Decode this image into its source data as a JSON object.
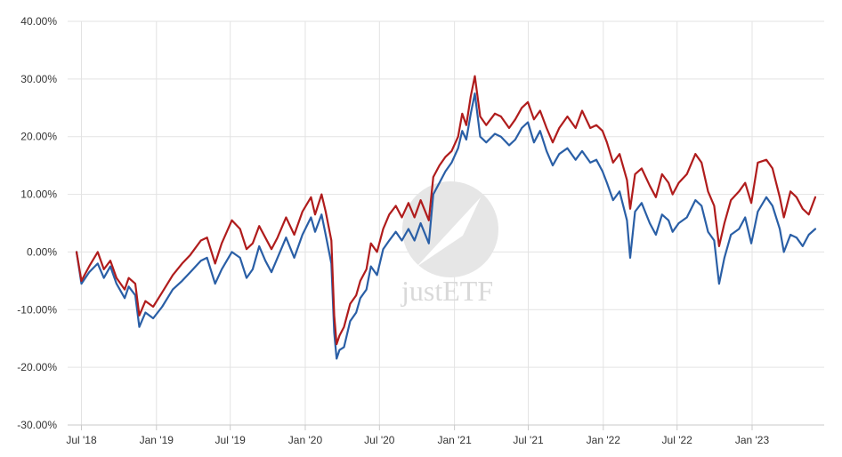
{
  "watermark": {
    "text": "justETF"
  },
  "colors": {
    "series_blue": "#2a5fa6",
    "series_red": "#b01c1c",
    "grid": "#e3e3e3",
    "axis": "#c9c9c9"
  },
  "chart_data": {
    "type": "line",
    "title": "",
    "xlabel": "",
    "ylabel": "",
    "grid": true,
    "ylim": [
      -30,
      40
    ],
    "y_ticks": [
      40,
      30,
      20,
      10,
      0,
      -10,
      -20,
      -30
    ],
    "y_tick_labels": [
      "40.00%",
      "30.00%",
      "20.00%",
      "10.00%",
      "0.00%",
      "-10.00%",
      "-20.00%",
      "-30.00%"
    ],
    "x_range": [
      "2018-06-19",
      "2023-06-05"
    ],
    "x_ticks": [
      "2018-07-01",
      "2019-01-01",
      "2019-07-01",
      "2020-01-01",
      "2020-07-01",
      "2021-01-01",
      "2021-07-01",
      "2022-01-01",
      "2022-07-01",
      "2023-01-01"
    ],
    "x_tick_labels": [
      "Jul '18",
      "Jan '19",
      "Jul '19",
      "Jan '20",
      "Jul '20",
      "Jan '21",
      "Jul '21",
      "Jan '22",
      "Jul '22",
      "Jan '23"
    ],
    "series": [
      {
        "color": "#2a5fa6",
        "points": [
          [
            "2018-06-19",
            0.0
          ],
          [
            "2018-07-01",
            -5.5
          ],
          [
            "2018-07-20",
            -3.5
          ],
          [
            "2018-08-10",
            -2.0
          ],
          [
            "2018-08-25",
            -4.5
          ],
          [
            "2018-09-10",
            -2.5
          ],
          [
            "2018-09-25",
            -5.5
          ],
          [
            "2018-10-15",
            -8.0
          ],
          [
            "2018-10-25",
            -6.0
          ],
          [
            "2018-11-10",
            -7.5
          ],
          [
            "2018-11-20",
            -13.0
          ],
          [
            "2018-12-05",
            -10.5
          ],
          [
            "2018-12-24",
            -11.5
          ],
          [
            "2019-01-15",
            -9.5
          ],
          [
            "2019-02-10",
            -6.5
          ],
          [
            "2019-03-05",
            -5.0
          ],
          [
            "2019-03-25",
            -3.5
          ],
          [
            "2019-04-20",
            -1.5
          ],
          [
            "2019-05-05",
            -1.0
          ],
          [
            "2019-05-25",
            -5.5
          ],
          [
            "2019-06-10",
            -3.0
          ],
          [
            "2019-07-05",
            0.0
          ],
          [
            "2019-07-25",
            -1.0
          ],
          [
            "2019-08-10",
            -4.5
          ],
          [
            "2019-08-25",
            -3.0
          ],
          [
            "2019-09-10",
            1.0
          ],
          [
            "2019-09-25",
            -1.5
          ],
          [
            "2019-10-10",
            -3.5
          ],
          [
            "2019-10-25",
            -1.0
          ],
          [
            "2019-11-15",
            2.5
          ],
          [
            "2019-12-05",
            -1.0
          ],
          [
            "2019-12-25",
            3.0
          ],
          [
            "2020-01-15",
            6.0
          ],
          [
            "2020-01-25",
            3.5
          ],
          [
            "2020-02-10",
            6.5
          ],
          [
            "2020-02-20",
            3.0
          ],
          [
            "2020-03-05",
            -2.0
          ],
          [
            "2020-03-12",
            -14.0
          ],
          [
            "2020-03-18",
            -18.5
          ],
          [
            "2020-03-25",
            -17.0
          ],
          [
            "2020-04-05",
            -16.5
          ],
          [
            "2020-04-20",
            -12.0
          ],
          [
            "2020-05-05",
            -10.5
          ],
          [
            "2020-05-15",
            -8.0
          ],
          [
            "2020-05-30",
            -6.5
          ],
          [
            "2020-06-10",
            -2.5
          ],
          [
            "2020-06-25",
            -4.0
          ],
          [
            "2020-07-10",
            0.5
          ],
          [
            "2020-07-25",
            2.0
          ],
          [
            "2020-08-10",
            3.5
          ],
          [
            "2020-08-25",
            2.0
          ],
          [
            "2020-09-10",
            4.0
          ],
          [
            "2020-09-25",
            2.0
          ],
          [
            "2020-10-10",
            5.0
          ],
          [
            "2020-10-30",
            1.5
          ],
          [
            "2020-11-10",
            10.0
          ],
          [
            "2020-11-25",
            12.0
          ],
          [
            "2020-12-10",
            14.0
          ],
          [
            "2020-12-25",
            15.5
          ],
          [
            "2021-01-10",
            18.0
          ],
          [
            "2021-01-20",
            21.0
          ],
          [
            "2021-01-30",
            19.5
          ],
          [
            "2021-02-10",
            24.0
          ],
          [
            "2021-02-20",
            27.5
          ],
          [
            "2021-03-05",
            20.0
          ],
          [
            "2021-03-20",
            19.0
          ],
          [
            "2021-04-10",
            20.5
          ],
          [
            "2021-04-25",
            20.0
          ],
          [
            "2021-05-15",
            18.5
          ],
          [
            "2021-05-30",
            19.5
          ],
          [
            "2021-06-15",
            21.5
          ],
          [
            "2021-06-30",
            22.5
          ],
          [
            "2021-07-15",
            19.0
          ],
          [
            "2021-07-30",
            21.0
          ],
          [
            "2021-08-15",
            17.5
          ],
          [
            "2021-08-30",
            15.0
          ],
          [
            "2021-09-15",
            17.0
          ],
          [
            "2021-10-05",
            18.0
          ],
          [
            "2021-10-25",
            16.0
          ],
          [
            "2021-11-10",
            17.5
          ],
          [
            "2021-11-30",
            15.5
          ],
          [
            "2021-12-15",
            16.0
          ],
          [
            "2021-12-30",
            14.0
          ],
          [
            "2022-01-10",
            12.0
          ],
          [
            "2022-01-25",
            9.0
          ],
          [
            "2022-02-10",
            10.5
          ],
          [
            "2022-02-28",
            5.5
          ],
          [
            "2022-03-08",
            -1.0
          ],
          [
            "2022-03-20",
            7.0
          ],
          [
            "2022-04-05",
            8.5
          ],
          [
            "2022-04-25",
            5.0
          ],
          [
            "2022-05-10",
            3.0
          ],
          [
            "2022-05-25",
            6.5
          ],
          [
            "2022-06-10",
            5.5
          ],
          [
            "2022-06-20",
            3.5
          ],
          [
            "2022-07-05",
            5.0
          ],
          [
            "2022-07-25",
            6.0
          ],
          [
            "2022-08-15",
            9.0
          ],
          [
            "2022-08-30",
            8.0
          ],
          [
            "2022-09-15",
            3.5
          ],
          [
            "2022-09-30",
            2.0
          ],
          [
            "2022-10-12",
            -5.5
          ],
          [
            "2022-10-25",
            -1.0
          ],
          [
            "2022-11-10",
            3.0
          ],
          [
            "2022-11-30",
            4.0
          ],
          [
            "2022-12-15",
            6.0
          ],
          [
            "2022-12-30",
            1.5
          ],
          [
            "2023-01-15",
            7.0
          ],
          [
            "2023-02-05",
            9.5
          ],
          [
            "2023-02-20",
            8.0
          ],
          [
            "2023-03-10",
            4.0
          ],
          [
            "2023-03-20",
            0.0
          ],
          [
            "2023-04-05",
            3.0
          ],
          [
            "2023-04-20",
            2.5
          ],
          [
            "2023-05-05",
            1.0
          ],
          [
            "2023-05-20",
            3.0
          ],
          [
            "2023-06-05",
            4.0
          ]
        ]
      },
      {
        "color": "#b01c1c",
        "points": [
          [
            "2018-06-19",
            0.0
          ],
          [
            "2018-07-01",
            -5.0
          ],
          [
            "2018-07-20",
            -2.5
          ],
          [
            "2018-08-10",
            0.0
          ],
          [
            "2018-08-25",
            -3.0
          ],
          [
            "2018-09-10",
            -1.5
          ],
          [
            "2018-09-25",
            -4.5
          ],
          [
            "2018-10-15",
            -6.5
          ],
          [
            "2018-10-25",
            -4.5
          ],
          [
            "2018-11-10",
            -5.5
          ],
          [
            "2018-11-20",
            -11.0
          ],
          [
            "2018-12-05",
            -8.5
          ],
          [
            "2018-12-24",
            -9.5
          ],
          [
            "2019-01-15",
            -7.0
          ],
          [
            "2019-02-10",
            -4.0
          ],
          [
            "2019-03-05",
            -2.0
          ],
          [
            "2019-03-25",
            -0.5
          ],
          [
            "2019-04-20",
            2.0
          ],
          [
            "2019-05-05",
            2.5
          ],
          [
            "2019-05-25",
            -2.0
          ],
          [
            "2019-06-10",
            1.5
          ],
          [
            "2019-07-05",
            5.5
          ],
          [
            "2019-07-25",
            4.0
          ],
          [
            "2019-08-10",
            0.5
          ],
          [
            "2019-08-25",
            1.5
          ],
          [
            "2019-09-10",
            4.5
          ],
          [
            "2019-09-25",
            2.5
          ],
          [
            "2019-10-10",
            0.5
          ],
          [
            "2019-10-25",
            2.5
          ],
          [
            "2019-11-15",
            6.0
          ],
          [
            "2019-12-05",
            3.0
          ],
          [
            "2019-12-25",
            7.0
          ],
          [
            "2020-01-15",
            9.5
          ],
          [
            "2020-01-25",
            6.5
          ],
          [
            "2020-02-10",
            10.0
          ],
          [
            "2020-02-20",
            7.0
          ],
          [
            "2020-03-05",
            2.0
          ],
          [
            "2020-03-12",
            -11.0
          ],
          [
            "2020-03-18",
            -16.0
          ],
          [
            "2020-03-25",
            -14.5
          ],
          [
            "2020-04-05",
            -13.0
          ],
          [
            "2020-04-20",
            -9.0
          ],
          [
            "2020-05-05",
            -7.5
          ],
          [
            "2020-05-15",
            -5.0
          ],
          [
            "2020-05-30",
            -3.0
          ],
          [
            "2020-06-10",
            1.5
          ],
          [
            "2020-06-25",
            0.0
          ],
          [
            "2020-07-10",
            4.0
          ],
          [
            "2020-07-25",
            6.5
          ],
          [
            "2020-08-10",
            8.0
          ],
          [
            "2020-08-25",
            6.0
          ],
          [
            "2020-09-10",
            8.5
          ],
          [
            "2020-09-25",
            6.0
          ],
          [
            "2020-10-10",
            9.0
          ],
          [
            "2020-10-30",
            5.5
          ],
          [
            "2020-11-10",
            13.0
          ],
          [
            "2020-11-25",
            15.0
          ],
          [
            "2020-12-10",
            16.5
          ],
          [
            "2020-12-25",
            17.5
          ],
          [
            "2021-01-10",
            20.0
          ],
          [
            "2021-01-20",
            24.0
          ],
          [
            "2021-01-30",
            22.0
          ],
          [
            "2021-02-10",
            27.0
          ],
          [
            "2021-02-20",
            30.5
          ],
          [
            "2021-03-05",
            23.5
          ],
          [
            "2021-03-20",
            22.0
          ],
          [
            "2021-04-10",
            24.0
          ],
          [
            "2021-04-25",
            23.5
          ],
          [
            "2021-05-15",
            21.5
          ],
          [
            "2021-05-30",
            23.0
          ],
          [
            "2021-06-15",
            25.0
          ],
          [
            "2021-06-30",
            26.0
          ],
          [
            "2021-07-15",
            23.0
          ],
          [
            "2021-07-30",
            24.5
          ],
          [
            "2021-08-15",
            21.5
          ],
          [
            "2021-08-30",
            19.0
          ],
          [
            "2021-09-15",
            21.5
          ],
          [
            "2021-10-05",
            23.5
          ],
          [
            "2021-10-25",
            21.5
          ],
          [
            "2021-11-10",
            24.5
          ],
          [
            "2021-11-30",
            21.5
          ],
          [
            "2021-12-15",
            22.0
          ],
          [
            "2021-12-30",
            21.0
          ],
          [
            "2022-01-10",
            19.0
          ],
          [
            "2022-01-25",
            15.5
          ],
          [
            "2022-02-10",
            17.0
          ],
          [
            "2022-02-28",
            12.5
          ],
          [
            "2022-03-08",
            7.5
          ],
          [
            "2022-03-20",
            13.5
          ],
          [
            "2022-04-05",
            14.5
          ],
          [
            "2022-04-25",
            11.5
          ],
          [
            "2022-05-10",
            9.5
          ],
          [
            "2022-05-25",
            13.5
          ],
          [
            "2022-06-10",
            12.0
          ],
          [
            "2022-06-20",
            10.0
          ],
          [
            "2022-07-05",
            12.0
          ],
          [
            "2022-07-25",
            13.5
          ],
          [
            "2022-08-15",
            17.0
          ],
          [
            "2022-08-30",
            15.5
          ],
          [
            "2022-09-15",
            10.5
          ],
          [
            "2022-09-30",
            8.0
          ],
          [
            "2022-10-12",
            1.0
          ],
          [
            "2022-10-25",
            5.0
          ],
          [
            "2022-11-10",
            9.0
          ],
          [
            "2022-11-30",
            10.5
          ],
          [
            "2022-12-15",
            12.0
          ],
          [
            "2022-12-30",
            8.5
          ],
          [
            "2023-01-15",
            15.5
          ],
          [
            "2023-02-05",
            16.0
          ],
          [
            "2023-02-20",
            14.5
          ],
          [
            "2023-03-10",
            9.5
          ],
          [
            "2023-03-20",
            6.0
          ],
          [
            "2023-04-05",
            10.5
          ],
          [
            "2023-04-20",
            9.5
          ],
          [
            "2023-05-05",
            7.5
          ],
          [
            "2023-05-20",
            6.5
          ],
          [
            "2023-06-05",
            9.5
          ]
        ]
      }
    ]
  }
}
